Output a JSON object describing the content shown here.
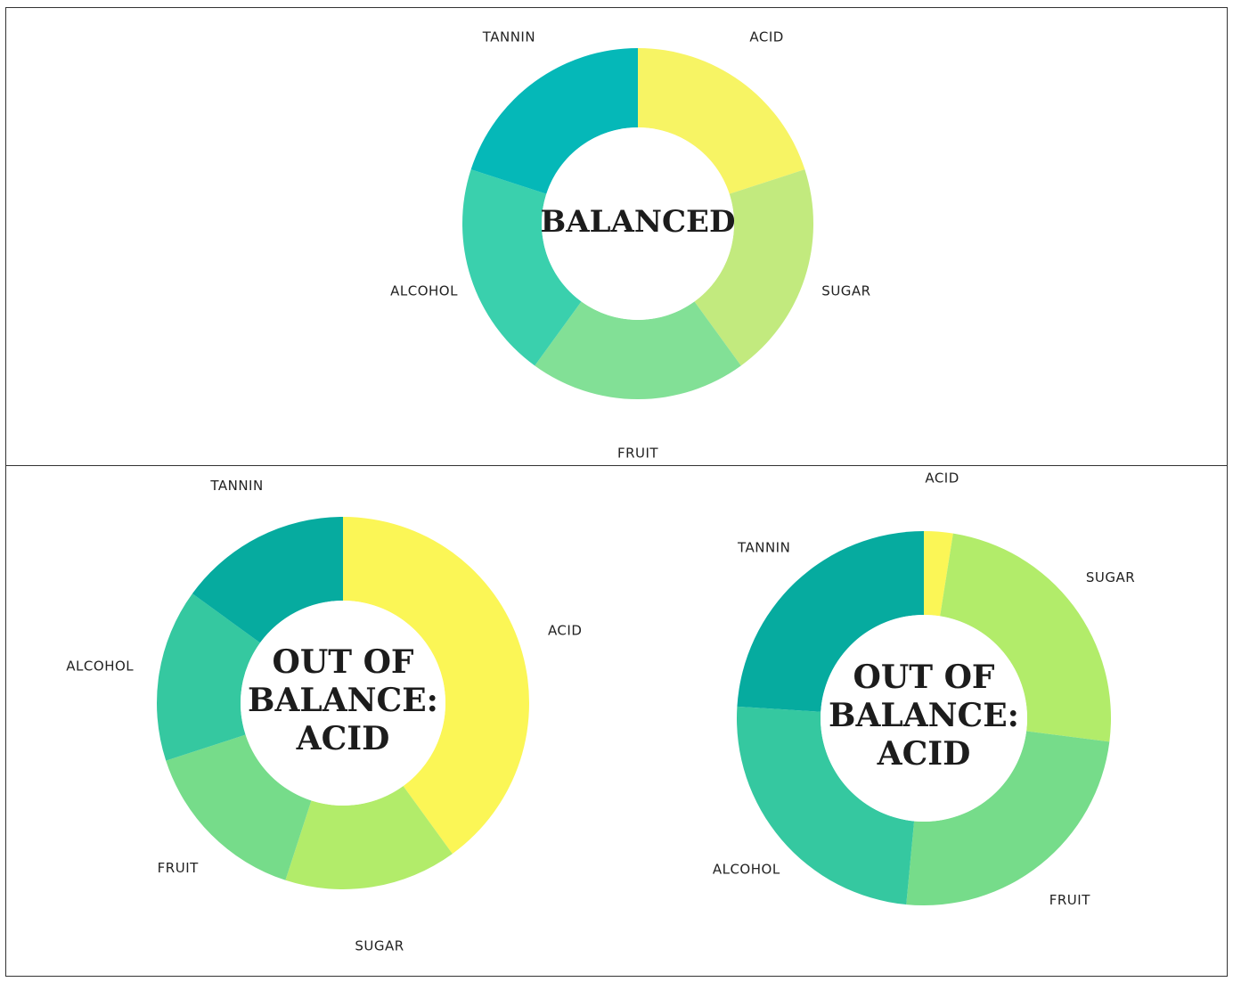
{
  "chart_data": [
    {
      "type": "pie",
      "center_text": [
        "BALANCED"
      ],
      "categories": [
        "ACID",
        "SUGAR",
        "FRUIT",
        "ALCOHOL",
        "TANNIN"
      ],
      "values": [
        20,
        20,
        20,
        20,
        20
      ],
      "colors": [
        "#f7f464",
        "#c2ea7e",
        "#82e096",
        "#3ad0ad",
        "#05b8b8"
      ]
    },
    {
      "type": "pie",
      "center_text": [
        "OUT OF",
        "BALANCE:",
        "ACID"
      ],
      "categories": [
        "ACID",
        "SUGAR",
        "FRUIT",
        "ALCOHOL",
        "TANNIN"
      ],
      "values": [
        40,
        15,
        15,
        15,
        15
      ],
      "colors": [
        "#fbf656",
        "#b2ec6a",
        "#76dc8a",
        "#35c8a0",
        "#06ab9f"
      ]
    },
    {
      "type": "pie",
      "center_text": [
        "OUT OF",
        "BALANCE:",
        "ACID"
      ],
      "categories": [
        "ACID",
        "SUGAR",
        "FRUIT",
        "ALCOHOL",
        "TANNIN"
      ],
      "values": [
        2.5,
        24.5,
        24.5,
        24.5,
        24
      ],
      "colors": [
        "#fbf656",
        "#b2ec6a",
        "#76dc8a",
        "#35c8a0",
        "#06ab9f"
      ]
    }
  ]
}
